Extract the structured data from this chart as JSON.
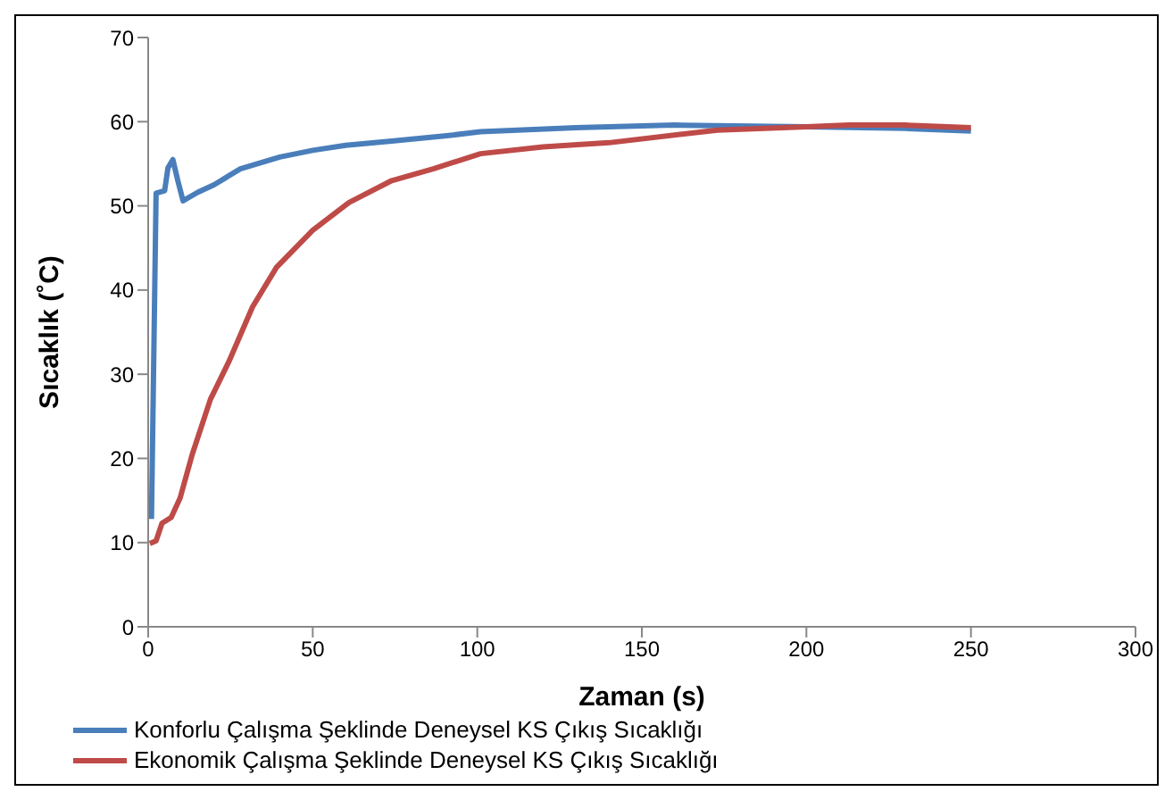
{
  "chart_data": {
    "type": "line",
    "xlabel": "Zaman (s)",
    "ylabel": "Sıcaklık (˚C)",
    "xlim": [
      0,
      300
    ],
    "xticks": [
      0,
      50,
      100,
      150,
      200,
      250,
      300
    ],
    "ylim": [
      0,
      70
    ],
    "yticks": [
      0,
      10,
      20,
      30,
      40,
      50,
      60,
      70
    ],
    "grid": false,
    "legend": "bottom",
    "marker": "none",
    "line_style": "solid",
    "series": [
      {
        "name": "Konforlu Çalışma Şeklinde Deneysel KS Çıkış Sıcaklığı",
        "color": "#4a7ebb",
        "x": [
          1,
          2.4,
          5,
          6,
          7.5,
          9,
          10.6,
          15,
          20,
          28,
          40,
          50,
          60,
          74,
          90,
          101,
          130,
          160,
          200,
          230,
          250
        ],
        "values": [
          12.8,
          51.5,
          51.8,
          54.5,
          55.5,
          53,
          50.6,
          51.6,
          52.5,
          54.4,
          55.8,
          56.6,
          57.2,
          57.7,
          58.3,
          58.8,
          59.3,
          59.6,
          59.4,
          59.2,
          58.9
        ]
      },
      {
        "name": "Ekonomik Çalışma Şeklinde Deneysel KS Çıkış Sıcaklığı",
        "color": "#be4b48",
        "x": [
          0.5,
          2.4,
          4.2,
          7,
          9.7,
          13.4,
          18.9,
          24.4,
          31.7,
          39,
          50,
          61,
          74,
          86.6,
          101,
          120,
          140,
          173,
          200,
          213,
          230,
          250
        ],
        "values": [
          9.9,
          10.2,
          12.3,
          13,
          15.3,
          20.5,
          27,
          31.4,
          38,
          42.7,
          47.1,
          50.4,
          53,
          54.4,
          56.2,
          57,
          57.5,
          59,
          59.4,
          59.6,
          59.6,
          59.3
        ]
      }
    ]
  }
}
